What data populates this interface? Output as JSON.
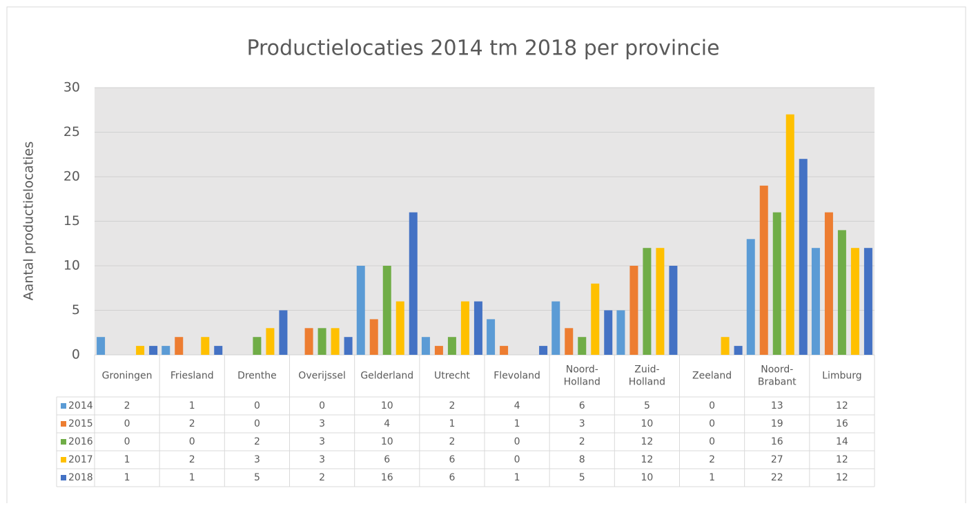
{
  "chart_data": {
    "type": "bar",
    "title": "Productielocaties 2014 tm 2018 per provincie",
    "y_label": "Aantal productielocaties",
    "categories": [
      "Groningen",
      "Friesland",
      "Drenthe",
      "Overijssel",
      "Gelderland",
      "Utrecht",
      "Flevoland",
      "Noord-Holland",
      "Zuid-Holland",
      "Zeeland",
      "Noord-Brabant",
      "Limburg"
    ],
    "series": [
      {
        "name": "2014",
        "color": "#5b9bd5",
        "values": [
          2,
          1,
          0,
          0,
          10,
          2,
          4,
          6,
          5,
          0,
          13,
          12
        ]
      },
      {
        "name": "2015",
        "color": "#ed7d31",
        "values": [
          0,
          2,
          0,
          3,
          4,
          1,
          1,
          3,
          10,
          0,
          19,
          16
        ]
      },
      {
        "name": "2016",
        "color": "#70ad47",
        "values": [
          0,
          0,
          2,
          3,
          10,
          2,
          0,
          2,
          12,
          0,
          16,
          14
        ]
      },
      {
        "name": "2017",
        "color": "#ffc000",
        "values": [
          1,
          2,
          3,
          3,
          6,
          6,
          0,
          8,
          12,
          2,
          27,
          12
        ]
      },
      {
        "name": "2018",
        "color": "#4472c4",
        "values": [
          1,
          1,
          5,
          2,
          16,
          6,
          1,
          5,
          10,
          1,
          22,
          12
        ]
      }
    ],
    "ylim": [
      0,
      30
    ],
    "yticks": [
      0,
      5,
      10,
      15,
      20,
      25,
      30
    ],
    "grid": true,
    "data_table": true
  }
}
